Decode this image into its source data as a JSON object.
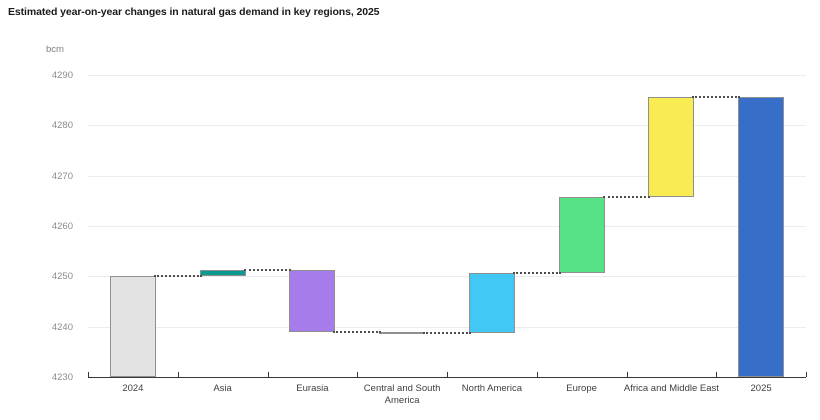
{
  "chart_data": {
    "type": "bar",
    "subtype": "waterfall",
    "title": "Estimated year-on-year changes in natural gas demand in key regions, 2025",
    "unit_label": "bcm",
    "ylim": [
      4230,
      4290
    ],
    "yticks": [
      4290,
      4280,
      4270,
      4260,
      4250,
      4240,
      4230
    ],
    "grid": true,
    "legend_position": "none",
    "categories": [
      "2024",
      "Asia",
      "Eurasia",
      "Central and South America",
      "North America",
      "Europe",
      "Africa and Middle East",
      "2025"
    ],
    "bars": [
      {
        "label": "2024",
        "kind": "total",
        "start": 4230,
        "end": 4250,
        "value": 4250,
        "color": "#e3e3e3"
      },
      {
        "label": "Asia",
        "kind": "increase",
        "start": 4250,
        "end": 4251.3,
        "change": 1.3,
        "color": "#0c9a8e"
      },
      {
        "label": "Eurasia",
        "kind": "decrease",
        "start": 4251.3,
        "end": 4239,
        "change": -12.3,
        "color": "#a57ce9"
      },
      {
        "label": "Central and South America",
        "kind": "decrease",
        "start": 4239,
        "end": 4238.7,
        "change": -0.3,
        "color": "#8d6b84"
      },
      {
        "label": "North America",
        "kind": "increase",
        "start": 4238.7,
        "end": 4250.7,
        "change": 12,
        "color": "#42c8f4"
      },
      {
        "label": "Europe",
        "kind": "increase",
        "start": 4250.7,
        "end": 4265.7,
        "change": 15,
        "color": "#58e287"
      },
      {
        "label": "Africa and Middle East",
        "kind": "increase",
        "start": 4265.7,
        "end": 4285.7,
        "change": 20,
        "color": "#f9ec52"
      },
      {
        "label": "2025",
        "kind": "total",
        "start": 4230,
        "end": 4285.7,
        "value": 4285.7,
        "color": "#376ec8"
      }
    ],
    "style": {
      "bar_border_color": "#8f8f8f",
      "connector_color": "#4d4d4d",
      "gridline_color": "#ececec",
      "axis_color": "#383838",
      "title_color": "#1a1a1a",
      "y_tick_color": "#8c8c8c",
      "x_label_color": "#3f3f3f",
      "background": "#ffffff"
    }
  }
}
